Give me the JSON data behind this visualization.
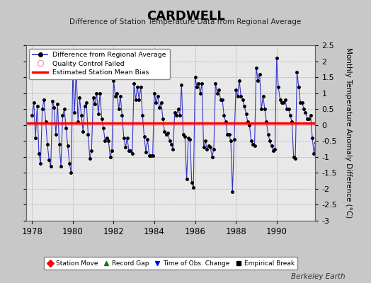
{
  "title": "CARDWELL",
  "subtitle": "Difference of Station Temperature Data from Regional Average",
  "ylabel_right": "Monthly Temperature Anomaly Difference (°C)",
  "bias": 0.05,
  "ylim": [
    -3.0,
    2.5
  ],
  "xlim": [
    1977.7,
    1991.9
  ],
  "xticks": [
    1978,
    1980,
    1982,
    1984,
    1986,
    1988,
    1990
  ],
  "yticks_right": [
    -3,
    -2.5,
    -2,
    -1.5,
    -1,
    -0.5,
    0,
    0.5,
    1,
    1.5,
    2,
    2.5
  ],
  "background_color": "#c8c8c8",
  "plot_bg_color": "#e8e8e8",
  "line_color": "#3333cc",
  "bias_line_color": "#ff0000",
  "marker_color": "#000000",
  "watermark": "Berkeley Earth",
  "values": [
    0.3,
    0.7,
    -0.4,
    0.6,
    -0.9,
    -1.2,
    0.5,
    0.8,
    0.1,
    -0.6,
    -1.1,
    -1.3,
    0.75,
    0.55,
    -0.3,
    0.65,
    -0.6,
    -1.3,
    0.3,
    0.5,
    -0.1,
    -0.65,
    -1.2,
    -1.5,
    1.7,
    0.4,
    1.8,
    0.1,
    0.85,
    0.3,
    -0.2,
    0.6,
    0.7,
    -0.3,
    -1.05,
    -0.8,
    0.85,
    0.65,
    1.0,
    0.35,
    1.0,
    0.2,
    -0.1,
    -0.5,
    -0.4,
    -0.5,
    -1.0,
    -0.8,
    1.4,
    0.9,
    1.0,
    0.5,
    0.9,
    0.3,
    -0.4,
    -0.7,
    -0.4,
    -0.8,
    -0.8,
    -0.9,
    1.3,
    0.8,
    1.2,
    0.8,
    1.2,
    0.3,
    -0.35,
    -0.85,
    -0.45,
    -0.95,
    -0.95,
    -0.95,
    1.0,
    0.7,
    0.9,
    0.55,
    0.7,
    0.2,
    -0.2,
    -0.3,
    -0.25,
    -0.5,
    -0.6,
    -0.75,
    0.4,
    0.3,
    0.5,
    0.3,
    1.25,
    -0.3,
    -0.35,
    -1.7,
    -0.4,
    -0.45,
    -1.8,
    -1.95,
    1.5,
    1.2,
    1.3,
    1.0,
    1.3,
    -0.7,
    -0.5,
    -0.75,
    -0.65,
    -0.7,
    -1.0,
    -0.75,
    1.3,
    1.0,
    1.1,
    0.8,
    0.8,
    0.3,
    0.1,
    -0.3,
    -0.3,
    -0.5,
    -2.1,
    -0.45,
    1.1,
    0.9,
    1.4,
    0.9,
    0.8,
    0.6,
    0.35,
    0.1,
    0.0,
    -0.5,
    -0.6,
    -0.65,
    1.8,
    1.4,
    1.6,
    0.5,
    0.9,
    0.5,
    0.1,
    -0.3,
    -0.5,
    -0.65,
    -0.8,
    -0.75,
    2.1,
    1.2,
    0.8,
    0.7,
    0.7,
    0.8,
    0.5,
    0.5,
    0.3,
    0.1,
    -1.0,
    -1.05,
    1.65,
    1.2,
    0.7,
    0.7,
    0.5,
    0.4,
    0.2,
    0.2,
    0.3,
    -0.4,
    -0.9,
    -0.55
  ],
  "start_year": 1978,
  "start_month": 1
}
